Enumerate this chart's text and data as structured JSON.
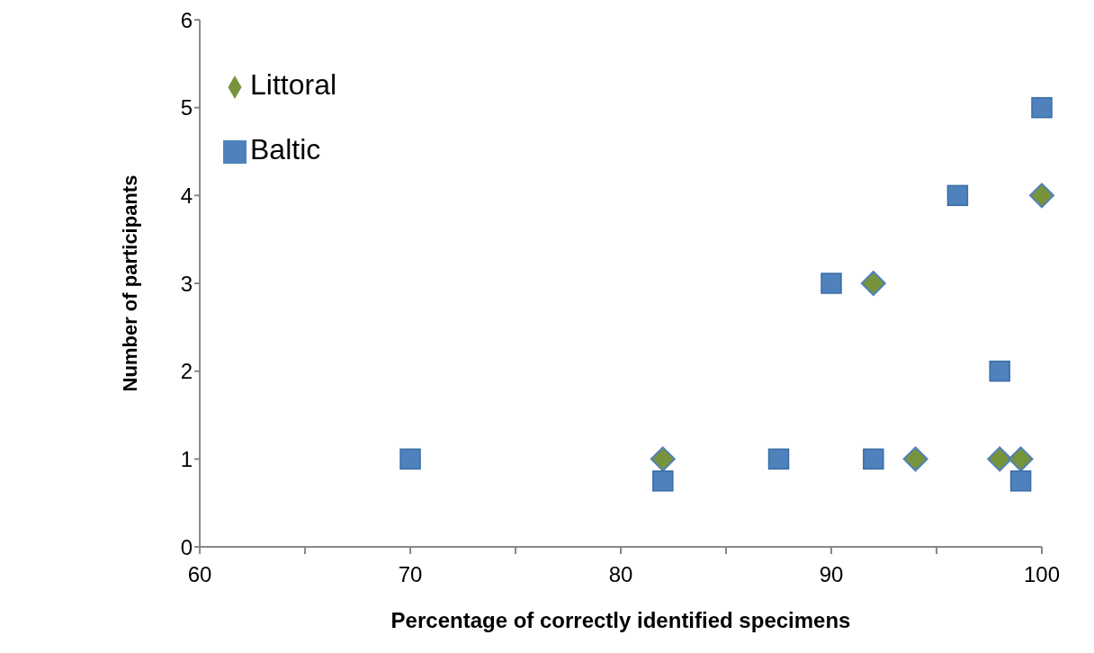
{
  "chart_data": {
    "type": "scatter",
    "xlabel": "Percentage of correctly identified specimens",
    "ylabel": "Number of participants",
    "series": [
      {
        "name": "Littoral",
        "color": "#77933c",
        "marker": "diamond",
        "x": [
          82,
          92,
          94,
          98,
          99,
          100
        ],
        "values": [
          1,
          3,
          1,
          1,
          1,
          4
        ]
      },
      {
        "name": "Baltic",
        "color": "#4f81bd",
        "marker": "square",
        "x": [
          70,
          82,
          87.5,
          90,
          92,
          96,
          98,
          99,
          100
        ],
        "values": [
          1,
          0.75,
          1,
          3,
          1,
          4,
          2,
          0.75,
          5
        ]
      }
    ],
    "xlim": [
      60,
      100
    ],
    "xticks": [
      60,
      {
        "value": 65,
        "label": null
      },
      70,
      {
        "value": 75,
        "label": null
      },
      80,
      {
        "value": 85,
        "label": null
      },
      90,
      {
        "value": 95,
        "label": null
      },
      100
    ],
    "ylim": [
      0,
      6
    ],
    "yticks": [
      0,
      1,
      2,
      3,
      4,
      5,
      6
    ],
    "grid": false,
    "legend": "top left"
  }
}
